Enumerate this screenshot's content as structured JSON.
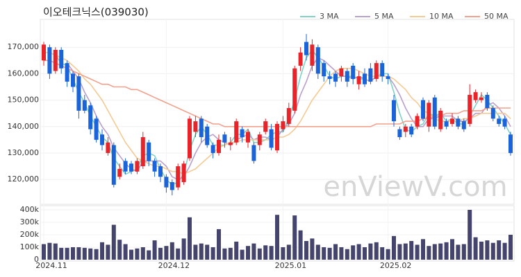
{
  "chart_data": {
    "type": "candlestick",
    "title": "이오테크닉스(039030)",
    "watermark": "enViewV.com",
    "grid": true,
    "legend": "top-right",
    "up_color": "#e8232a",
    "down_color": "#1a63d8",
    "ylim": [
      111400,
      180000
    ],
    "yticks": [
      {
        "value": 120000,
        "label": "120,000"
      },
      {
        "value": 130000,
        "label": "130,000"
      },
      {
        "value": 140000,
        "label": "140,000"
      },
      {
        "value": 150000,
        "label": "150,000"
      },
      {
        "value": 160000,
        "label": "160,000"
      },
      {
        "value": 170000,
        "label": "170,000"
      }
    ],
    "categories": [
      "2024.11",
      null,
      null,
      null,
      null,
      null,
      null,
      null,
      null,
      null,
      null,
      null,
      null,
      null,
      null,
      null,
      null,
      null,
      null,
      null,
      null,
      "2024.12",
      null,
      null,
      null,
      null,
      null,
      null,
      null,
      null,
      null,
      null,
      null,
      null,
      null,
      null,
      null,
      null,
      null,
      null,
      null,
      "2025.01",
      null,
      null,
      null,
      null,
      null,
      null,
      null,
      null,
      null,
      null,
      null,
      null,
      null,
      null,
      null,
      null,
      null,
      "2025.02",
      null,
      null,
      null,
      null,
      null,
      null,
      null,
      null,
      null,
      null,
      null,
      null,
      null,
      null,
      null,
      null,
      null,
      null,
      null,
      null,
      null
    ],
    "open": [
      165000,
      170000,
      161000,
      169000,
      164000,
      160000,
      159000,
      150000,
      148000,
      143000,
      137000,
      130000,
      133000,
      121000,
      127000,
      126000,
      123000,
      125000,
      134000,
      127000,
      125000,
      121000,
      119000,
      117000,
      119000,
      128000,
      138000,
      143000,
      140000,
      133000,
      130000,
      137000,
      133000,
      134000,
      139000,
      134000,
      133000,
      133000,
      138000,
      139000,
      131000,
      139000,
      141000,
      146000,
      163000,
      172000,
      163000,
      170000,
      164000,
      159000,
      160000,
      159000,
      161000,
      163000,
      156000,
      160000,
      162000,
      158000,
      164000,
      159000,
      150000,
      139000,
      138000,
      140000,
      140000,
      150000,
      140000,
      151000,
      139000,
      142000,
      141000,
      143000,
      142000,
      141000,
      150000,
      150000,
      152000,
      147000,
      143000,
      143000,
      137000
    ],
    "high": [
      172000,
      171000,
      170000,
      170000,
      165000,
      161000,
      160000,
      152000,
      149000,
      144000,
      139000,
      136000,
      134000,
      126000,
      128000,
      127000,
      128000,
      138000,
      135000,
      128000,
      126000,
      122000,
      120000,
      126000,
      127000,
      144000,
      144000,
      144000,
      141000,
      134000,
      137000,
      138000,
      136000,
      143000,
      140000,
      139000,
      134000,
      138000,
      143000,
      141000,
      142000,
      144000,
      149000,
      163000,
      170000,
      175000,
      173000,
      171000,
      165000,
      161000,
      161000,
      163000,
      162000,
      164000,
      161000,
      162000,
      164000,
      165000,
      165000,
      160000,
      152000,
      140000,
      141000,
      141000,
      145000,
      151000,
      150000,
      152000,
      147000,
      143000,
      145000,
      144000,
      143000,
      156000,
      154000,
      153000,
      153000,
      148000,
      144000,
      144000,
      138000
    ],
    "low": [
      163000,
      158000,
      160000,
      160000,
      155000,
      153000,
      143000,
      145000,
      137000,
      134000,
      131000,
      129000,
      117000,
      120000,
      122000,
      122000,
      122000,
      124000,
      125000,
      121000,
      119000,
      115000,
      114000,
      116000,
      118000,
      127000,
      136000,
      134000,
      132000,
      128000,
      129000,
      132000,
      131000,
      133000,
      134000,
      132000,
      126000,
      131000,
      137000,
      131000,
      130000,
      138000,
      140000,
      145000,
      161000,
      165000,
      161000,
      158000,
      157000,
      156000,
      155000,
      157000,
      155000,
      156000,
      154000,
      155000,
      156000,
      157000,
      157000,
      156000,
      140000,
      135000,
      136000,
      136000,
      139000,
      142000,
      138000,
      139000,
      138000,
      139000,
      140000,
      139000,
      138000,
      140000,
      149000,
      149000,
      146000,
      142000,
      140000,
      139000,
      129000
    ],
    "close": [
      171000,
      160000,
      169000,
      162000,
      157000,
      155000,
      146000,
      146000,
      139000,
      135000,
      133000,
      134000,
      118000,
      124000,
      123000,
      123000,
      127000,
      136000,
      127000,
      123000,
      121000,
      117000,
      116000,
      125000,
      126000,
      143000,
      142000,
      136000,
      133000,
      130000,
      135000,
      134000,
      134000,
      142000,
      136000,
      138000,
      127000,
      137000,
      142000,
      132000,
      141000,
      142000,
      147000,
      162000,
      168000,
      167000,
      171000,
      160000,
      159000,
      158000,
      157000,
      162000,
      157000,
      158000,
      159000,
      156000,
      157000,
      164000,
      159000,
      158000,
      142000,
      136000,
      140000,
      137000,
      144000,
      143000,
      149000,
      140000,
      146000,
      140000,
      143000,
      140000,
      139000,
      152000,
      153000,
      151000,
      147000,
      143000,
      141000,
      140000,
      130000
    ],
    "series": [
      {
        "name": "3 MA",
        "color": "#7fd3c6",
        "values": [
          null,
          null,
          167000,
          164000,
          163000,
          158000,
          153000,
          149000,
          144000,
          140000,
          136000,
          134000,
          128000,
          125000,
          122000,
          123000,
          124000,
          129000,
          130000,
          129000,
          124000,
          120000,
          118000,
          119000,
          122000,
          131000,
          137000,
          140000,
          137000,
          133000,
          133000,
          133000,
          134000,
          137000,
          137000,
          139000,
          134000,
          134000,
          135000,
          137000,
          138000,
          138000,
          143000,
          150000,
          159000,
          166000,
          169000,
          166000,
          163000,
          159000,
          158000,
          159000,
          159000,
          159000,
          158000,
          158000,
          157000,
          159000,
          160000,
          160000,
          153000,
          145000,
          139000,
          138000,
          140000,
          141000,
          145000,
          144000,
          145000,
          142000,
          143000,
          141000,
          141000,
          144000,
          148000,
          152000,
          150000,
          147000,
          144000,
          141000,
          137000
        ]
      },
      {
        "name": "5 MA",
        "color": "#b8a0cb",
        "values": [
          null,
          null,
          null,
          null,
          164000,
          161000,
          158000,
          153000,
          149000,
          144000,
          140000,
          137000,
          132000,
          129000,
          126000,
          124000,
          123000,
          127000,
          127000,
          127000,
          127000,
          125000,
          121000,
          120000,
          121000,
          125000,
          130000,
          134000,
          136000,
          137000,
          135000,
          134000,
          133000,
          135000,
          136000,
          137000,
          135000,
          136000,
          136000,
          135000,
          136000,
          139000,
          141000,
          145000,
          152000,
          157000,
          163000,
          166000,
          165000,
          163000,
          161000,
          159000,
          159000,
          158000,
          159000,
          158000,
          157000,
          159000,
          159000,
          159000,
          156000,
          152000,
          147000,
          143000,
          140000,
          140000,
          143000,
          143000,
          144000,
          144000,
          144000,
          142000,
          142000,
          143000,
          145000,
          145000,
          148000,
          149000,
          147000,
          144000,
          140000
        ]
      },
      {
        "name": "10 MA",
        "color": "#f5c993",
        "values": [
          168000,
          168000,
          167000,
          166000,
          165000,
          163000,
          161000,
          158000,
          156000,
          153000,
          150000,
          146000,
          142000,
          138000,
          134000,
          131000,
          128000,
          127000,
          126000,
          125000,
          125000,
          124000,
          123000,
          123000,
          122000,
          123000,
          124000,
          126000,
          128000,
          130000,
          132000,
          133000,
          134000,
          134000,
          135000,
          135000,
          135000,
          135000,
          135000,
          135000,
          136000,
          136000,
          137000,
          139000,
          142000,
          146000,
          150000,
          153000,
          156000,
          159000,
          161000,
          162000,
          162000,
          162000,
          161000,
          160000,
          159000,
          159000,
          159000,
          159000,
          158000,
          156000,
          154000,
          151000,
          149000,
          146000,
          145000,
          143000,
          142000,
          142000,
          142000,
          142000,
          143000,
          143000,
          144000,
          145000,
          145000,
          145000,
          145000,
          145000,
          143000
        ]
      },
      {
        "name": "50 MA",
        "color": "#f2a08c",
        "values": [
          165000,
          165000,
          164000,
          163000,
          162000,
          161000,
          160000,
          159000,
          158000,
          157000,
          156000,
          156000,
          155000,
          155000,
          155000,
          154000,
          154000,
          153000,
          152000,
          151000,
          150000,
          149000,
          148000,
          147000,
          146000,
          145000,
          144000,
          143000,
          142000,
          141000,
          141000,
          140000,
          140000,
          140000,
          140000,
          140000,
          140000,
          140000,
          140000,
          140000,
          140000,
          140000,
          140000,
          140000,
          140000,
          140000,
          140000,
          140000,
          140000,
          140000,
          140000,
          140000,
          140000,
          140000,
          140000,
          140000,
          140000,
          141000,
          141000,
          141000,
          141000,
          141000,
          142000,
          142000,
          142000,
          143000,
          143000,
          144000,
          144000,
          145000,
          145000,
          145000,
          146000,
          146000,
          146000,
          146000,
          147000,
          147000,
          147000,
          147000,
          147000
        ]
      }
    ],
    "volume": {
      "color": "#44446c",
      "ylim": [
        0,
        400000
      ],
      "yticks": [
        0,
        {
          "value": 100000,
          "label": "100k"
        },
        {
          "value": 200000,
          "label": "200k"
        },
        {
          "value": 300000,
          "label": "300k"
        },
        {
          "value": 400000,
          "label": "400k"
        }
      ],
      "values": [
        125000,
        135000,
        130000,
        95000,
        95000,
        100000,
        100000,
        95000,
        90000,
        85000,
        140000,
        120000,
        280000,
        160000,
        125000,
        80000,
        90000,
        100000,
        75000,
        155000,
        95000,
        110000,
        140000,
        90000,
        170000,
        340000,
        120000,
        130000,
        120000,
        100000,
        245000,
        90000,
        95000,
        145000,
        80000,
        110000,
        130000,
        90000,
        115000,
        110000,
        360000,
        100000,
        120000,
        355000,
        235000,
        150000,
        170000,
        120000,
        100000,
        95000,
        125000,
        100000,
        85000,
        115000,
        125000,
        100000,
        130000,
        140000,
        100000,
        85000,
        190000,
        125000,
        130000,
        150000,
        120000,
        165000,
        110000,
        125000,
        130000,
        140000,
        165000,
        120000,
        125000,
        400000,
        180000,
        145000,
        155000,
        135000,
        155000,
        135000,
        200000
      ]
    }
  }
}
